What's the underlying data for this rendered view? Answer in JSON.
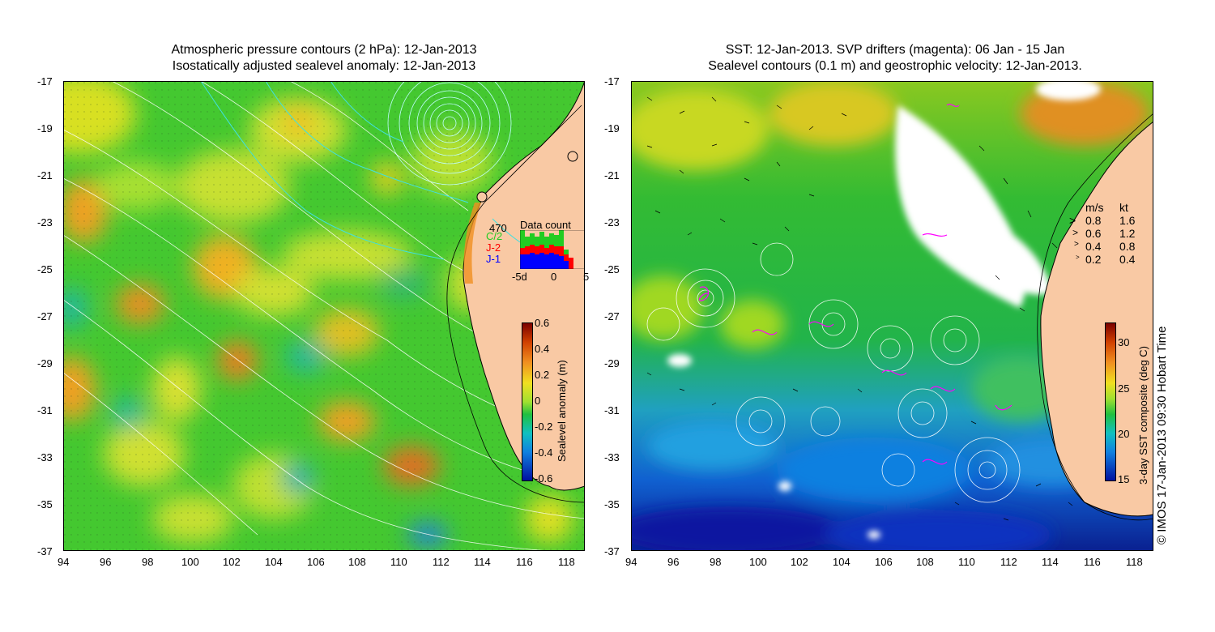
{
  "left_panel": {
    "title_line1": "Atmospheric pressure contours (2 hPa): 12-Jan-2013",
    "title_line2": "Isostatically adjusted sealevel anomaly: 12-Jan-2013",
    "colorbar": {
      "label": "Sealevel anomaly (m)",
      "ticks": [
        "0.6",
        "0.4",
        "0.2",
        "0",
        "-0.2",
        "-0.4",
        "-0.6"
      ]
    },
    "inset": {
      "title": "Data count",
      "max_label": "470",
      "legend": [
        {
          "label": "C/2",
          "color": "#22cc22"
        },
        {
          "label": "J-2",
          "color": "#ff0000"
        },
        {
          "label": "J-1",
          "color": "#0000ff"
        }
      ],
      "x_ticks": [
        "-5d",
        "0",
        "5"
      ]
    }
  },
  "right_panel": {
    "title_line1": "SST: 12-Jan-2013. SVP drifters (magenta): 06 Jan - 15 Jan",
    "title_line2": "Sealevel contours (0.1 m) and geostrophic velocity: 12-Jan-2013.",
    "colorbar": {
      "label": "3-day SST composite (deg C)",
      "ticks": [
        "30",
        "25",
        "20",
        "15"
      ]
    },
    "velocity_legend": {
      "header_ms": "m/s",
      "header_kt": "kt",
      "rows": [
        {
          "ms": "0.8",
          "kt": "1.6"
        },
        {
          "ms": "0.6",
          "kt": "1.2"
        },
        {
          "ms": "0.4",
          "kt": "0.8"
        },
        {
          "ms": "0.2",
          "kt": "0.4"
        }
      ]
    }
  },
  "axes": {
    "lat_ticks": [
      "-17",
      "-19",
      "-21",
      "-23",
      "-25",
      "-27",
      "-29",
      "-31",
      "-33",
      "-35",
      "-37"
    ],
    "lon_ticks": [
      "94",
      "96",
      "98",
      "100",
      "102",
      "104",
      "106",
      "108",
      "110",
      "112",
      "114",
      "116",
      "118"
    ]
  },
  "credit": "© IMOS 17-Jan-2013 09:30 Hobart Time",
  "colors": {
    "land": "#f9c9a4",
    "ocean_green": "#33cc33",
    "contour_pressure": "#ffffff",
    "contour_cyan": "#40e0e0",
    "drifter": "#ff00ff"
  }
}
